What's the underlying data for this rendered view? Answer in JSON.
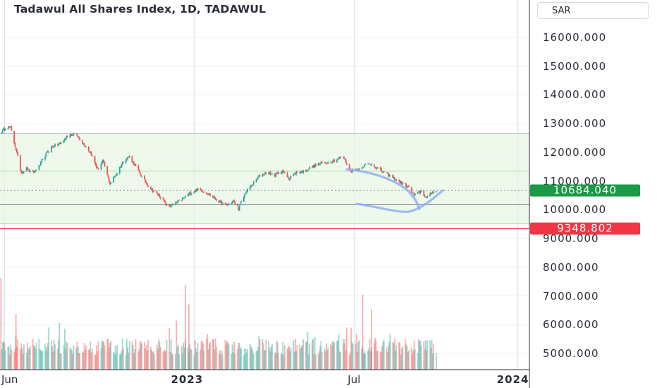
{
  "header": {
    "title": "Tadawul All Shares Index, 1D, TADAWUL",
    "currency": "SAR"
  },
  "colors": {
    "up": "#26a69a",
    "down": "#ef5350",
    "last_price_badge": "#1a9a46",
    "low_level_badge": "#f23645",
    "zone_fill": "#e8f5e4",
    "annotation": "#8fb0f0"
  },
  "chart_data": {
    "type": "candlestick",
    "title": "Tadawul All Shares Index, 1D, TADAWUL",
    "ylim": [
      4500,
      17000
    ],
    "y_ticks": [
      "16000.000",
      "15000.000",
      "14000.000",
      "13000.000",
      "12000.000",
      "11000.000",
      "10000.000",
      "9000.000",
      "8000.000",
      "7000.000",
      "6000.000",
      "5000.000"
    ],
    "y_tick_values": [
      16000,
      15000,
      14000,
      13000,
      12000,
      11000,
      10000,
      9000,
      8000,
      7000,
      6000,
      5000
    ],
    "x_ticks": [
      {
        "label": "Jun",
        "bold": false
      },
      {
        "label": "2023",
        "bold": true
      },
      {
        "label": "Jul",
        "bold": false
      },
      {
        "label": "2024",
        "bold": true
      }
    ],
    "x_range": [
      "2022-05-27",
      "2024-01-14"
    ],
    "x_tick_dates": [
      "2022-06-01",
      "2023-01-01",
      "2023-07-01",
      "2024-01-01"
    ],
    "close_path": [
      [
        "2022-05-27",
        12650
      ],
      [
        "2022-06-03",
        12900
      ],
      [
        "2022-06-08",
        12850
      ],
      [
        "2022-06-14",
        12100
      ],
      [
        "2022-06-20",
        11300
      ],
      [
        "2022-06-26",
        11450
      ],
      [
        "2022-07-02",
        11250
      ],
      [
        "2022-07-10",
        11500
      ],
      [
        "2022-07-18",
        11950
      ],
      [
        "2022-07-25",
        12200
      ],
      [
        "2022-08-03",
        12300
      ],
      [
        "2022-08-12",
        12600
      ],
      [
        "2022-08-20",
        12650
      ],
      [
        "2022-08-28",
        12350
      ],
      [
        "2022-09-06",
        12000
      ],
      [
        "2022-09-14",
        11400
      ],
      [
        "2022-09-20",
        11700
      ],
      [
        "2022-09-28",
        10900
      ],
      [
        "2022-10-06",
        11300
      ],
      [
        "2022-10-14",
        11750
      ],
      [
        "2022-10-20",
        11850
      ],
      [
        "2022-10-27",
        11500
      ],
      [
        "2022-11-06",
        11000
      ],
      [
        "2022-11-14",
        10700
      ],
      [
        "2022-11-24",
        10450
      ],
      [
        "2022-12-02",
        10100
      ],
      [
        "2022-12-10",
        10200
      ],
      [
        "2022-12-18",
        10350
      ],
      [
        "2022-12-26",
        10550
      ],
      [
        "2023-01-04",
        10700
      ],
      [
        "2023-01-12",
        10650
      ],
      [
        "2023-01-20",
        10500
      ],
      [
        "2023-01-28",
        10300
      ],
      [
        "2023-02-06",
        10150
      ],
      [
        "2023-02-14",
        10300
      ],
      [
        "2023-02-20",
        10050
      ],
      [
        "2023-02-28",
        10600
      ],
      [
        "2023-03-08",
        10900
      ],
      [
        "2023-03-16",
        11200
      ],
      [
        "2023-03-24",
        11300
      ],
      [
        "2023-04-02",
        11200
      ],
      [
        "2023-04-10",
        11350
      ],
      [
        "2023-04-18",
        11100
      ],
      [
        "2023-04-26",
        11300
      ],
      [
        "2023-05-06",
        11350
      ],
      [
        "2023-05-14",
        11500
      ],
      [
        "2023-05-22",
        11600
      ],
      [
        "2023-06-01",
        11650
      ],
      [
        "2023-06-10",
        11750
      ],
      [
        "2023-06-18",
        11850
      ],
      [
        "2023-06-26",
        11350
      ],
      [
        "2023-07-04",
        11400
      ],
      [
        "2023-07-12",
        11550
      ],
      [
        "2023-07-20",
        11600
      ],
      [
        "2023-07-28",
        11400
      ],
      [
        "2023-08-06",
        11250
      ],
      [
        "2023-08-14",
        11100
      ],
      [
        "2023-08-22",
        10950
      ],
      [
        "2023-08-30",
        10800
      ],
      [
        "2023-09-06",
        10500
      ],
      [
        "2023-09-14",
        10650
      ],
      [
        "2023-09-20",
        10400
      ],
      [
        "2023-09-26",
        10600
      ],
      [
        "2023-10-01",
        10684
      ]
    ],
    "volume_ylim": [
      0,
      3800
    ],
    "horizontal_levels": [
      {
        "value": 12650,
        "style": "solid",
        "color": "#b2b5be"
      },
      {
        "value": 11350,
        "style": "solid",
        "color": "#a9d8a0"
      },
      {
        "value": 10680,
        "style": "dotted",
        "color": "#787b86"
      },
      {
        "value": 10190,
        "style": "solid",
        "color": "#787b86"
      },
      {
        "value": 9520,
        "style": "solid",
        "color": "#a9d8a0"
      },
      {
        "value": 9348.802,
        "style": "solid",
        "color": "#f23645"
      }
    ],
    "price_labels": [
      {
        "text": "10684.040",
        "value": 10684.04,
        "color": "#1a9a46"
      },
      {
        "text": "9348.802",
        "value": 9348.802,
        "color": "#f23645"
      }
    ],
    "vertical_lines": [
      "2022-06-01",
      "2023-01-01",
      "2023-07-01",
      "2024-01-01"
    ]
  }
}
